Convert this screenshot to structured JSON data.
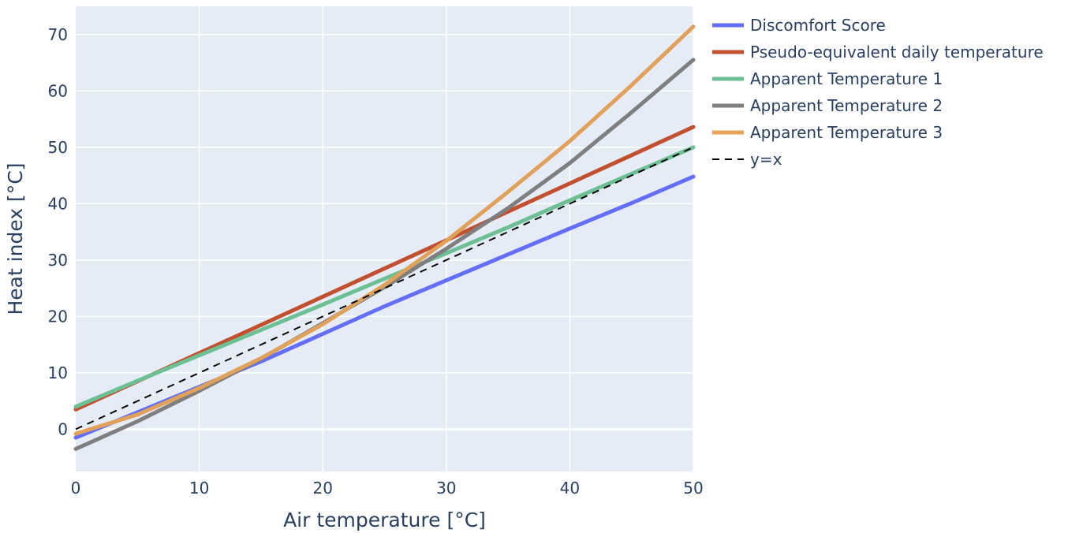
{
  "chart_data": {
    "type": "line",
    "xlabel": "Air temperature [°C]",
    "ylabel": "Heat index [°C]",
    "xlim": [
      0,
      50
    ],
    "ylim": [
      -7.5,
      75
    ],
    "x_ticks": [
      0,
      10,
      20,
      30,
      40,
      50
    ],
    "y_ticks": [
      0,
      10,
      20,
      30,
      40,
      50,
      60,
      70
    ],
    "grid": true,
    "legend_position": "right",
    "plot_background": "#e5ecf6",
    "series": [
      {
        "name": "Discomfort Score",
        "color": "#636efa",
        "dash": "solid",
        "x": [
          0,
          5,
          10,
          15,
          20,
          25,
          30,
          35,
          40,
          45,
          50
        ],
        "y": [
          -1.5,
          3,
          7.5,
          12,
          16.9,
          21.8,
          26.4,
          31,
          35.6,
          40.1,
          44.8
        ]
      },
      {
        "name": "Pseudo-equivalent daily temperature",
        "color": "#c2502f",
        "dash": "solid",
        "x": [
          0,
          5,
          10,
          15,
          20,
          25,
          30,
          35,
          40,
          45,
          50
        ],
        "y": [
          3.5,
          8.5,
          13.5,
          18.5,
          23.5,
          28.5,
          33.5,
          38.6,
          43.6,
          48.6,
          53.6
        ]
      },
      {
        "name": "Apparent Temperature 1",
        "color": "#6cc093",
        "dash": "solid",
        "x": [
          0,
          5,
          10,
          15,
          20,
          25,
          30,
          35,
          40,
          45,
          50
        ],
        "y": [
          4,
          8.6,
          13.1,
          17.6,
          22.1,
          26.7,
          31.2,
          35.8,
          40.6,
          45.3,
          50
        ]
      },
      {
        "name": "Apparent Temperature 2",
        "color": "#7f7f7f",
        "dash": "solid",
        "x": [
          0,
          5,
          10,
          15,
          20,
          25,
          30,
          35,
          40,
          45,
          50
        ],
        "y": [
          -3.5,
          1.4,
          6.8,
          12.5,
          18.8,
          25.2,
          32,
          39.2,
          47.2,
          56.2,
          65.5
        ]
      },
      {
        "name": "Apparent Temperature 3",
        "color": "#e2a15b",
        "dash": "solid",
        "x": [
          0,
          5,
          10,
          15,
          20,
          25,
          30,
          35,
          40,
          45,
          50
        ],
        "y": [
          -0.8,
          2.6,
          7.3,
          12.6,
          18.6,
          25.6,
          33.4,
          42.1,
          51.1,
          61,
          71.4
        ]
      },
      {
        "name": "y=x",
        "color": "#000000",
        "dash": "dash",
        "x": [
          0,
          50
        ],
        "y": [
          0,
          50
        ]
      }
    ]
  }
}
